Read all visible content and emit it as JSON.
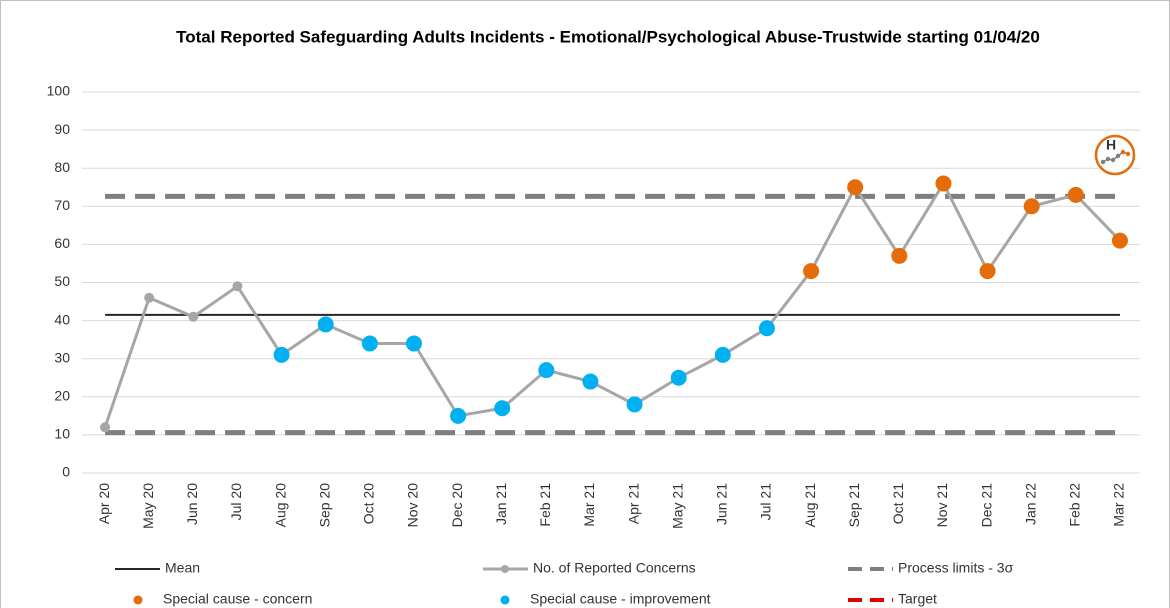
{
  "chart_data": {
    "type": "spc",
    "title": "Total Reported Safeguarding Adults Incidents - Emotional/Psychological Abuse-Trustwide starting 01/04/20",
    "categories": [
      "Apr 20",
      "May 20",
      "Jun 20",
      "Jul 20",
      "Aug 20",
      "Sep 20",
      "Oct 20",
      "Nov 20",
      "Dec 20",
      "Jan 21",
      "Feb 21",
      "Mar 21",
      "Apr 21",
      "May 21",
      "Jun 21",
      "Jul 21",
      "Aug 21",
      "Sep 21",
      "Oct 21",
      "Nov 21",
      "Dec 21",
      "Jan 22",
      "Feb 22",
      "Mar 22"
    ],
    "series": [
      {
        "name": "No. of Reported Concerns",
        "color": "#a6a6a6",
        "values": [
          12,
          46,
          41,
          49,
          31,
          39,
          34,
          34,
          15,
          17,
          27,
          24,
          18,
          25,
          31,
          38,
          53,
          75,
          57,
          76,
          53,
          70,
          73,
          61
        ],
        "marker_colors": [
          "#a6a6a6",
          "#a6a6a6",
          "#a6a6a6",
          "#a6a6a6",
          "#00b0f0",
          "#00b0f0",
          "#00b0f0",
          "#00b0f0",
          "#00b0f0",
          "#00b0f0",
          "#00b0f0",
          "#00b0f0",
          "#00b0f0",
          "#00b0f0",
          "#00b0f0",
          "#00b0f0",
          "#e46c0a",
          "#e46c0a",
          "#e46c0a",
          "#e46c0a",
          "#e46c0a",
          "#e46c0a",
          "#e46c0a",
          "#e46c0a"
        ]
      }
    ],
    "mean": 41.5,
    "upper_limit": 72.6,
    "lower_limit": 10.6,
    "ylim": [
      0,
      100
    ],
    "yticks": [
      0,
      10,
      20,
      30,
      40,
      50,
      60,
      70,
      80,
      90,
      100
    ],
    "grid": true,
    "legend": [
      {
        "name": "Mean",
        "color": "#262626",
        "style": "line"
      },
      {
        "name": "No. of Reported Concerns",
        "color": "#a6a6a6",
        "style": "line-dot"
      },
      {
        "name": "Process limits - 3σ",
        "color": "#7f7f7f",
        "style": "dash"
      },
      {
        "name": "Special cause - concern",
        "color": "#e46c0a",
        "style": "dot"
      },
      {
        "name": "Special cause  - improvement",
        "color": "#00b0f0",
        "style": "dot"
      },
      {
        "name": "Target",
        "color": "#e00000",
        "style": "dash"
      }
    ],
    "icon_label": "H",
    "icon_color": "#e46c0a"
  }
}
